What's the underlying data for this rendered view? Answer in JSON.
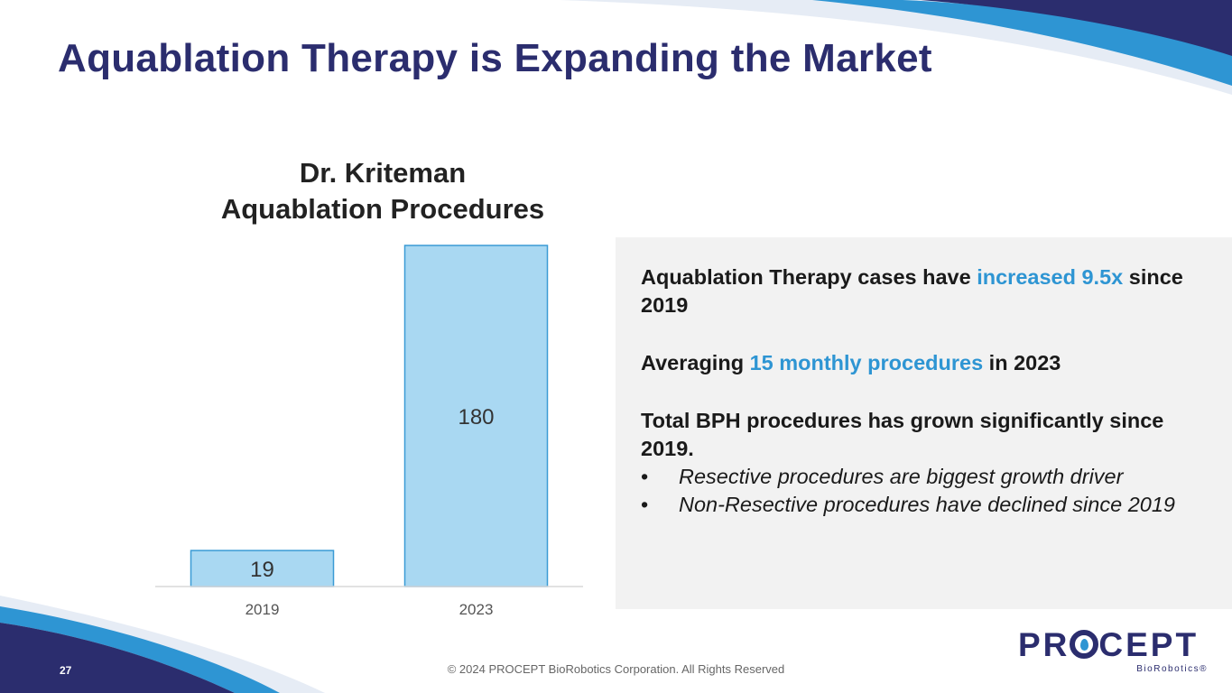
{
  "slide": {
    "title": "Aquablation Therapy is Expanding the Market",
    "page_number": "27",
    "copyright": "© 2024 PROCEPT BioRobotics Corporation. All Rights Reserved"
  },
  "logo": {
    "name_part1": "PR",
    "name_part2": "CEPT",
    "subtitle": "BioRobotics®"
  },
  "colors": {
    "title": "#2b2d6e",
    "accent": "#2e95d3",
    "bar_fill": "#a9d8f2",
    "bar_stroke": "#3a9bd5",
    "panel_bg": "#f2f2f2"
  },
  "chart_data": {
    "type": "bar",
    "title_line1": "Dr. Kriteman",
    "title_line2": "Aquablation Procedures",
    "categories": [
      "2019",
      "2023"
    ],
    "values": [
      19,
      180
    ],
    "data_labels": [
      "19",
      "180"
    ],
    "xlabel": "",
    "ylabel": "",
    "ylim": [
      0,
      180
    ],
    "grid": false,
    "legend": "none"
  },
  "panel": {
    "line1_pre": "Aquablation Therapy cases have ",
    "line1_accent": "increased 9.5x",
    "line1_post": " since 2019",
    "line2_pre": "Averaging ",
    "line2_accent": "15 monthly procedures",
    "line2_post": " in 2023",
    "line3": "Total BPH procedures has grown significantly since 2019.",
    "bullet_symbol": "•",
    "bullets": [
      "Resective procedures are biggest growth driver",
      "Non-Resective procedures have declined since 2019"
    ]
  }
}
